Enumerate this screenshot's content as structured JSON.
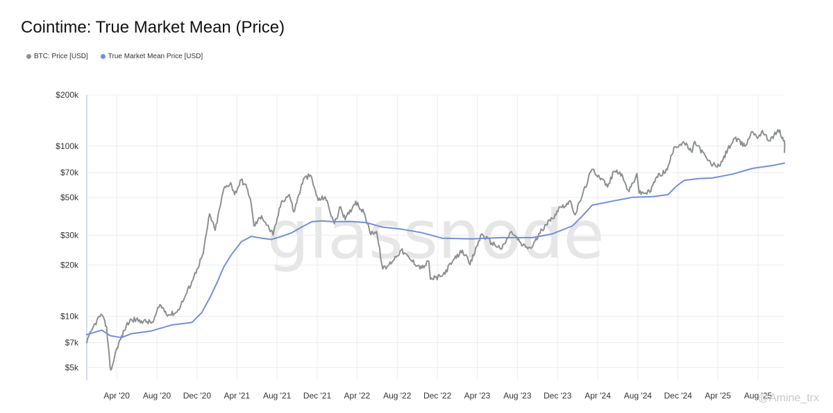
{
  "header": {
    "title": "Cointime: True Market Mean (Price)"
  },
  "colors": {
    "btc": "#8c908f",
    "tmm": "#6f8fdc",
    "grid": "#ececec",
    "axis": "#c9d3e3"
  },
  "watermark": {
    "text": "glassnode"
  },
  "credit": {
    "text": "@Amine_trx"
  },
  "chart_data": {
    "type": "line",
    "title": "Cointime: True Market Mean (Price)",
    "xlabel": "",
    "ylabel": "",
    "yscale": "log",
    "ylim": [
      4200,
      200000
    ],
    "xlim": [
      "2020-01-01",
      "2025-10-20"
    ],
    "grid": true,
    "legend_position": "top-left",
    "y_ticks": [
      {
        "value": 200000,
        "label": "$200k"
      },
      {
        "value": 100000,
        "label": "$100k"
      },
      {
        "value": 70000,
        "label": "$70k"
      },
      {
        "value": 50000,
        "label": "$50k"
      },
      {
        "value": 30000,
        "label": "$30k"
      },
      {
        "value": 20000,
        "label": "$20k"
      },
      {
        "value": 10000,
        "label": "$10k"
      },
      {
        "value": 7000,
        "label": "$7k"
      },
      {
        "value": 5000,
        "label": "$5k"
      }
    ],
    "x_ticks": [
      {
        "date": "2020-04-01",
        "label": "Apr '20"
      },
      {
        "date": "2020-08-01",
        "label": "Aug '20"
      },
      {
        "date": "2020-12-01",
        "label": "Dec '20"
      },
      {
        "date": "2021-04-01",
        "label": "Apr '21"
      },
      {
        "date": "2021-08-01",
        "label": "Aug '21"
      },
      {
        "date": "2021-12-01",
        "label": "Dec '21"
      },
      {
        "date": "2022-04-01",
        "label": "Apr '22"
      },
      {
        "date": "2022-08-01",
        "label": "Aug '22"
      },
      {
        "date": "2022-12-01",
        "label": "Dec '22"
      },
      {
        "date": "2023-04-01",
        "label": "Apr '23"
      },
      {
        "date": "2023-08-01",
        "label": "Aug '23"
      },
      {
        "date": "2023-12-01",
        "label": "Dec '23"
      },
      {
        "date": "2024-04-01",
        "label": "Apr '24"
      },
      {
        "date": "2024-08-01",
        "label": "Aug '24"
      },
      {
        "date": "2024-12-01",
        "label": "Dec '24"
      },
      {
        "date": "2025-04-01",
        "label": "Apr '25"
      },
      {
        "date": "2025-08-01",
        "label": "Aug '25"
      }
    ],
    "series": [
      {
        "name": "BTC: Price [USD]",
        "color": "#8c908f",
        "points": [
          [
            "2020-01-01",
            7000
          ],
          [
            "2020-01-20",
            8600
          ],
          [
            "2020-02-13",
            10300
          ],
          [
            "2020-03-01",
            8700
          ],
          [
            "2020-03-12",
            5000
          ],
          [
            "2020-03-16",
            4900
          ],
          [
            "2020-04-01",
            6500
          ],
          [
            "2020-04-30",
            8800
          ],
          [
            "2020-05-15",
            9600
          ],
          [
            "2020-06-15",
            9400
          ],
          [
            "2020-07-20",
            9200
          ],
          [
            "2020-08-10",
            11700
          ],
          [
            "2020-09-05",
            10200
          ],
          [
            "2020-10-01",
            10600
          ],
          [
            "2020-10-25",
            13000
          ],
          [
            "2020-11-15",
            16000
          ],
          [
            "2020-12-01",
            19000
          ],
          [
            "2020-12-20",
            23500
          ],
          [
            "2021-01-08",
            40000
          ],
          [
            "2021-01-25",
            32000
          ],
          [
            "2021-02-20",
            56000
          ],
          [
            "2021-03-13",
            61000
          ],
          [
            "2021-03-25",
            52000
          ],
          [
            "2021-04-14",
            63500
          ],
          [
            "2021-05-01",
            57000
          ],
          [
            "2021-05-12",
            49000
          ],
          [
            "2021-05-23",
            34000
          ],
          [
            "2021-06-15",
            39000
          ],
          [
            "2021-07-20",
            30000
          ],
          [
            "2021-08-14",
            47000
          ],
          [
            "2021-09-07",
            52000
          ],
          [
            "2021-09-21",
            41000
          ],
          [
            "2021-10-20",
            64000
          ],
          [
            "2021-11-10",
            67500
          ],
          [
            "2021-12-04",
            48000
          ],
          [
            "2021-12-25",
            50500
          ],
          [
            "2022-01-22",
            35000
          ],
          [
            "2022-02-10",
            44000
          ],
          [
            "2022-02-24",
            37000
          ],
          [
            "2022-03-28",
            47500
          ],
          [
            "2022-04-25",
            39500
          ],
          [
            "2022-05-10",
            31000
          ],
          [
            "2022-05-30",
            31500
          ],
          [
            "2022-06-18",
            19000
          ],
          [
            "2022-07-01",
            19500
          ],
          [
            "2022-08-13",
            24500
          ],
          [
            "2022-09-10",
            21500
          ],
          [
            "2022-10-15",
            19200
          ],
          [
            "2022-11-05",
            21000
          ],
          [
            "2022-11-10",
            16500
          ],
          [
            "2022-12-15",
            17200
          ],
          [
            "2023-01-15",
            20800
          ],
          [
            "2023-02-15",
            24500
          ],
          [
            "2023-03-10",
            20100
          ],
          [
            "2023-04-14",
            30500
          ],
          [
            "2023-05-15",
            27000
          ],
          [
            "2023-06-15",
            25000
          ],
          [
            "2023-07-14",
            31500
          ],
          [
            "2023-08-17",
            26000
          ],
          [
            "2023-09-11",
            25100
          ],
          [
            "2023-10-24",
            34500
          ],
          [
            "2023-11-15",
            37500
          ],
          [
            "2023-12-08",
            44000
          ],
          [
            "2024-01-11",
            46500
          ],
          [
            "2024-01-23",
            39500
          ],
          [
            "2024-02-15",
            52000
          ],
          [
            "2024-03-14",
            73000
          ],
          [
            "2024-04-15",
            64000
          ],
          [
            "2024-05-01",
            57500
          ],
          [
            "2024-05-20",
            71000
          ],
          [
            "2024-06-07",
            70500
          ],
          [
            "2024-07-05",
            54000
          ],
          [
            "2024-07-29",
            69000
          ],
          [
            "2024-08-05",
            53000
          ],
          [
            "2024-09-06",
            53500
          ],
          [
            "2024-09-27",
            66000
          ],
          [
            "2024-10-29",
            72500
          ],
          [
            "2024-11-12",
            89000
          ],
          [
            "2024-11-22",
            99000
          ],
          [
            "2024-12-17",
            106000
          ],
          [
            "2025-01-13",
            92000
          ],
          [
            "2025-01-21",
            106500
          ],
          [
            "2025-02-27",
            84000
          ],
          [
            "2025-03-11",
            78500
          ],
          [
            "2025-04-08",
            76500
          ],
          [
            "2025-05-01",
            96000
          ],
          [
            "2025-05-22",
            111000
          ],
          [
            "2025-06-22",
            100000
          ],
          [
            "2025-07-14",
            122000
          ],
          [
            "2025-08-02",
            113000
          ],
          [
            "2025-08-14",
            123500
          ],
          [
            "2025-09-01",
            108000
          ],
          [
            "2025-10-06",
            124500
          ],
          [
            "2025-10-12",
            111500
          ],
          [
            "2025-10-20",
            107500
          ],
          [
            "2025-10-22",
            92000
          ]
        ]
      },
      {
        "name": "True Market Mean Price [USD]",
        "color": "#6f8fdc",
        "points": [
          [
            "2020-01-01",
            7800
          ],
          [
            "2020-02-15",
            8300
          ],
          [
            "2020-03-12",
            7700
          ],
          [
            "2020-04-15",
            7500
          ],
          [
            "2020-05-15",
            7900
          ],
          [
            "2020-07-15",
            8200
          ],
          [
            "2020-09-15",
            8900
          ],
          [
            "2020-11-15",
            9200
          ],
          [
            "2020-12-15",
            10500
          ],
          [
            "2021-01-10",
            13000
          ],
          [
            "2021-02-01",
            16000
          ],
          [
            "2021-02-20",
            19500
          ],
          [
            "2021-03-15",
            23000
          ],
          [
            "2021-04-15",
            27500
          ],
          [
            "2021-05-15",
            29500
          ],
          [
            "2021-06-15",
            28800
          ],
          [
            "2021-07-15",
            28300
          ],
          [
            "2021-08-15",
            29500
          ],
          [
            "2021-09-15",
            31000
          ],
          [
            "2021-10-15",
            33500
          ],
          [
            "2021-11-15",
            36000
          ],
          [
            "2021-12-15",
            36400
          ],
          [
            "2022-01-15",
            36000
          ],
          [
            "2022-03-15",
            36100
          ],
          [
            "2022-05-01",
            35500
          ],
          [
            "2022-06-15",
            33500
          ],
          [
            "2022-08-15",
            32500
          ],
          [
            "2022-10-15",
            31000
          ],
          [
            "2022-12-15",
            28800
          ],
          [
            "2023-03-15",
            28500
          ],
          [
            "2023-06-15",
            29000
          ],
          [
            "2023-09-15",
            29000
          ],
          [
            "2023-11-15",
            30500
          ],
          [
            "2024-01-15",
            34000
          ],
          [
            "2024-02-15",
            39000
          ],
          [
            "2024-03-15",
            45000
          ],
          [
            "2024-05-15",
            47500
          ],
          [
            "2024-07-15",
            50000
          ],
          [
            "2024-09-15",
            50500
          ],
          [
            "2024-11-01",
            52000
          ],
          [
            "2024-11-25",
            58000
          ],
          [
            "2024-12-20",
            63000
          ],
          [
            "2025-02-01",
            64500
          ],
          [
            "2025-03-15",
            65000
          ],
          [
            "2025-05-15",
            68500
          ],
          [
            "2025-07-15",
            74000
          ],
          [
            "2025-09-15",
            77000
          ],
          [
            "2025-10-22",
            79500
          ]
        ]
      }
    ]
  }
}
